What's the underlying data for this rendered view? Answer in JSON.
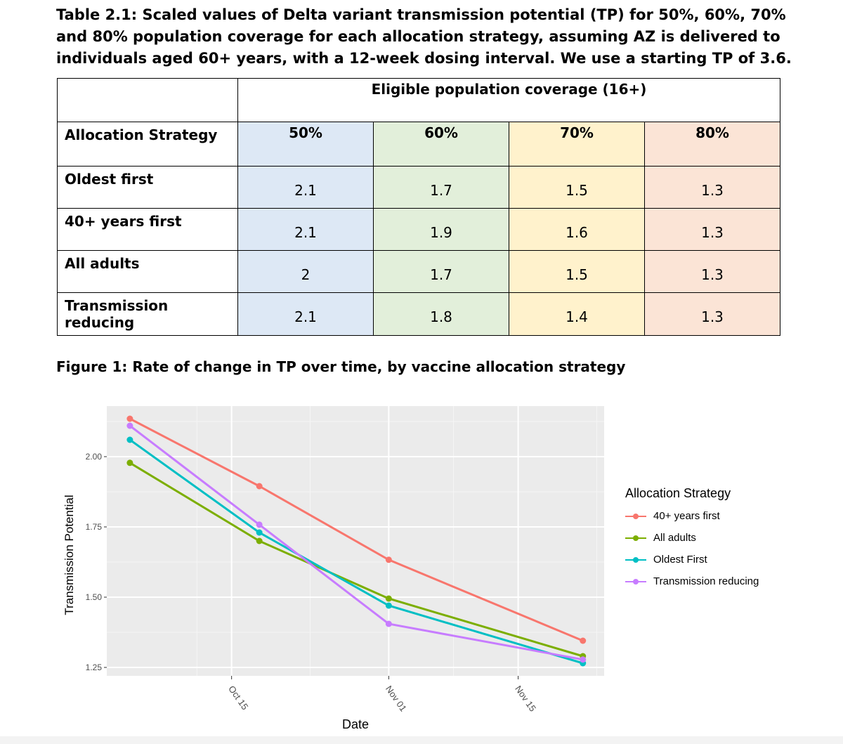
{
  "table": {
    "caption": "Table 2.1: Scaled values of Delta variant transmission potential (TP) for 50%, 60%, 70% and 80% population coverage for each allocation strategy, assuming AZ is delivered to individuals aged 60+ years, with a 12-week dosing interval. We use a starting TP of 3.6.",
    "group_header": "Eligible population coverage (16+)",
    "row_header": "Allocation Strategy",
    "columns": [
      "50%",
      "60%",
      "70%",
      "80%"
    ],
    "rows": [
      {
        "label": "Oldest first",
        "values": [
          "2.1",
          "1.7",
          "1.5",
          "1.3"
        ]
      },
      {
        "label": "40+ years first",
        "values": [
          "2.1",
          "1.9",
          "1.6",
          "1.3"
        ]
      },
      {
        "label": "All adults",
        "values": [
          "2",
          "1.7",
          "1.5",
          "1.3"
        ]
      },
      {
        "label": "Transmission reducing",
        "values": [
          "2.1",
          "1.8",
          "1.4",
          "1.3"
        ]
      }
    ]
  },
  "figure_caption": "Figure 1: Rate of change in TP over time, by vaccine allocation strategy",
  "chart_data": {
    "type": "line",
    "title": "",
    "xlabel": "Date",
    "ylabel": "Transmission Potential",
    "x": [
      "Oct 04",
      "Oct 18",
      "Nov 01",
      "Nov 22"
    ],
    "x_days": [
      3,
      17,
      31,
      52
    ],
    "xlim_days": [
      0.5,
      54.3
    ],
    "x_ticks": [
      {
        "label": "Oct 15",
        "day": 14
      },
      {
        "label": "Nov 01",
        "day": 31
      },
      {
        "label": "Nov 15",
        "day": 45
      }
    ],
    "ylim": [
      1.22,
      2.18
    ],
    "y_ticks": [
      "1.25",
      "1.50",
      "1.75",
      "2.00"
    ],
    "grid": true,
    "legend_title": "Allocation Strategy",
    "legend_position": "right",
    "series": [
      {
        "name": "40+ years first",
        "color": "#f8766d",
        "values": [
          2.135,
          1.895,
          1.633,
          1.345
        ]
      },
      {
        "name": "All adults",
        "color": "#7cae00",
        "values": [
          1.978,
          1.7,
          1.495,
          1.29
        ]
      },
      {
        "name": "Oldest First",
        "color": "#00bfc4",
        "values": [
          2.06,
          1.73,
          1.47,
          1.265
        ]
      },
      {
        "name": "Transmission reducing",
        "color": "#c77cff",
        "values": [
          2.11,
          1.758,
          1.405,
          1.278
        ]
      }
    ]
  }
}
